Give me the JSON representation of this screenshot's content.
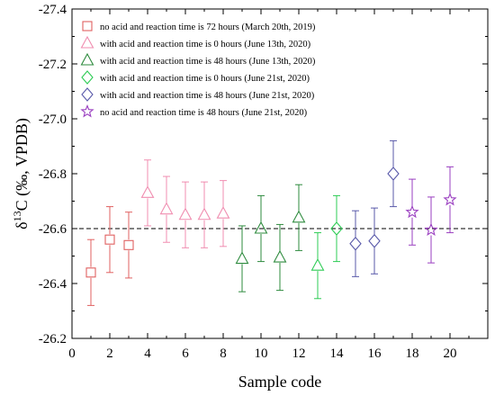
{
  "chart_data": {
    "type": "scatter",
    "xlabel": "Sample code",
    "ylabel_main": "δ",
    "ylabel_sup": "13",
    "ylabel_rest": "C (‰, VPDB)",
    "xlim": [
      0,
      22
    ],
    "ylim": [
      -26.2,
      -27.4
    ],
    "y_axis_inverted": true,
    "xticks": [
      "0",
      "2",
      "4",
      "6",
      "8",
      "10",
      "12",
      "14",
      "16",
      "18",
      "20"
    ],
    "yticks": [
      "-26.2",
      "-26.4",
      "-26.6",
      "-26.8",
      "-27.0",
      "-27.2",
      "-27.4"
    ],
    "reference_line": {
      "y": -26.6,
      "style": "dashed"
    },
    "legend_position": "top-left",
    "series": [
      {
        "name": "no acid and reaction time is 72 hours (March 20th, 2019)",
        "marker": "square",
        "color": "#e06060",
        "points": [
          {
            "x": 1,
            "y": -26.44,
            "err": 0.12
          },
          {
            "x": 2,
            "y": -26.56,
            "err": 0.12
          },
          {
            "x": 3,
            "y": -26.54,
            "err": 0.12
          }
        ]
      },
      {
        "name": "with acid and reaction time is 0 hours (June 13th, 2020)",
        "marker": "triangle",
        "color": "#f08db0",
        "points": [
          {
            "x": 4,
            "y": -26.73,
            "err": 0.12
          },
          {
            "x": 5,
            "y": -26.67,
            "err": 0.12
          },
          {
            "x": 6,
            "y": -26.65,
            "err": 0.12
          },
          {
            "x": 7,
            "y": -26.65,
            "err": 0.12
          },
          {
            "x": 8,
            "y": -26.655,
            "err": 0.12
          }
        ]
      },
      {
        "name": "with acid and reaction time is 48 hours (June 13th, 2020)",
        "marker": "triangle",
        "color": "#2e8b3e",
        "points": [
          {
            "x": 9,
            "y": -26.49,
            "err": 0.12
          },
          {
            "x": 10,
            "y": -26.6,
            "err": 0.12
          },
          {
            "x": 11,
            "y": -26.495,
            "err": 0.12
          },
          {
            "x": 12,
            "y": -26.64,
            "err": 0.12
          }
        ]
      },
      {
        "name": "with acid and reaction time is 0 hours (June 21st, 2020)",
        "marker": "diamond",
        "color": "#2ecc55",
        "points": [
          {
            "x": 13,
            "y": -26.465,
            "err": 0.12
          },
          {
            "x": 14,
            "y": -26.6,
            "err": 0.12
          }
        ]
      },
      {
        "name": "with acid and reaction time is 48 hours (June 21st, 2020)",
        "marker": "diamond",
        "color": "#5a5aaa",
        "points": [
          {
            "x": 15,
            "y": -26.545,
            "err": 0.12
          },
          {
            "x": 16,
            "y": -26.555,
            "err": 0.12
          },
          {
            "x": 17,
            "y": -26.8,
            "err": 0.12
          }
        ]
      },
      {
        "name": "no acid and reaction time is 48 hours (June 21st, 2020)",
        "marker": "star",
        "color": "#9a3fc0",
        "points": [
          {
            "x": 18,
            "y": -26.66,
            "err": 0.12
          },
          {
            "x": 19,
            "y": -26.595,
            "err": 0.12
          },
          {
            "x": 20,
            "y": -26.705,
            "err": 0.12
          }
        ]
      }
    ],
    "point_marker_overrides": [
      {
        "series": 3,
        "point": 0,
        "marker": "triangle"
      },
      {
        "series": 4,
        "point": 0,
        "marker": "diamond"
      }
    ]
  }
}
